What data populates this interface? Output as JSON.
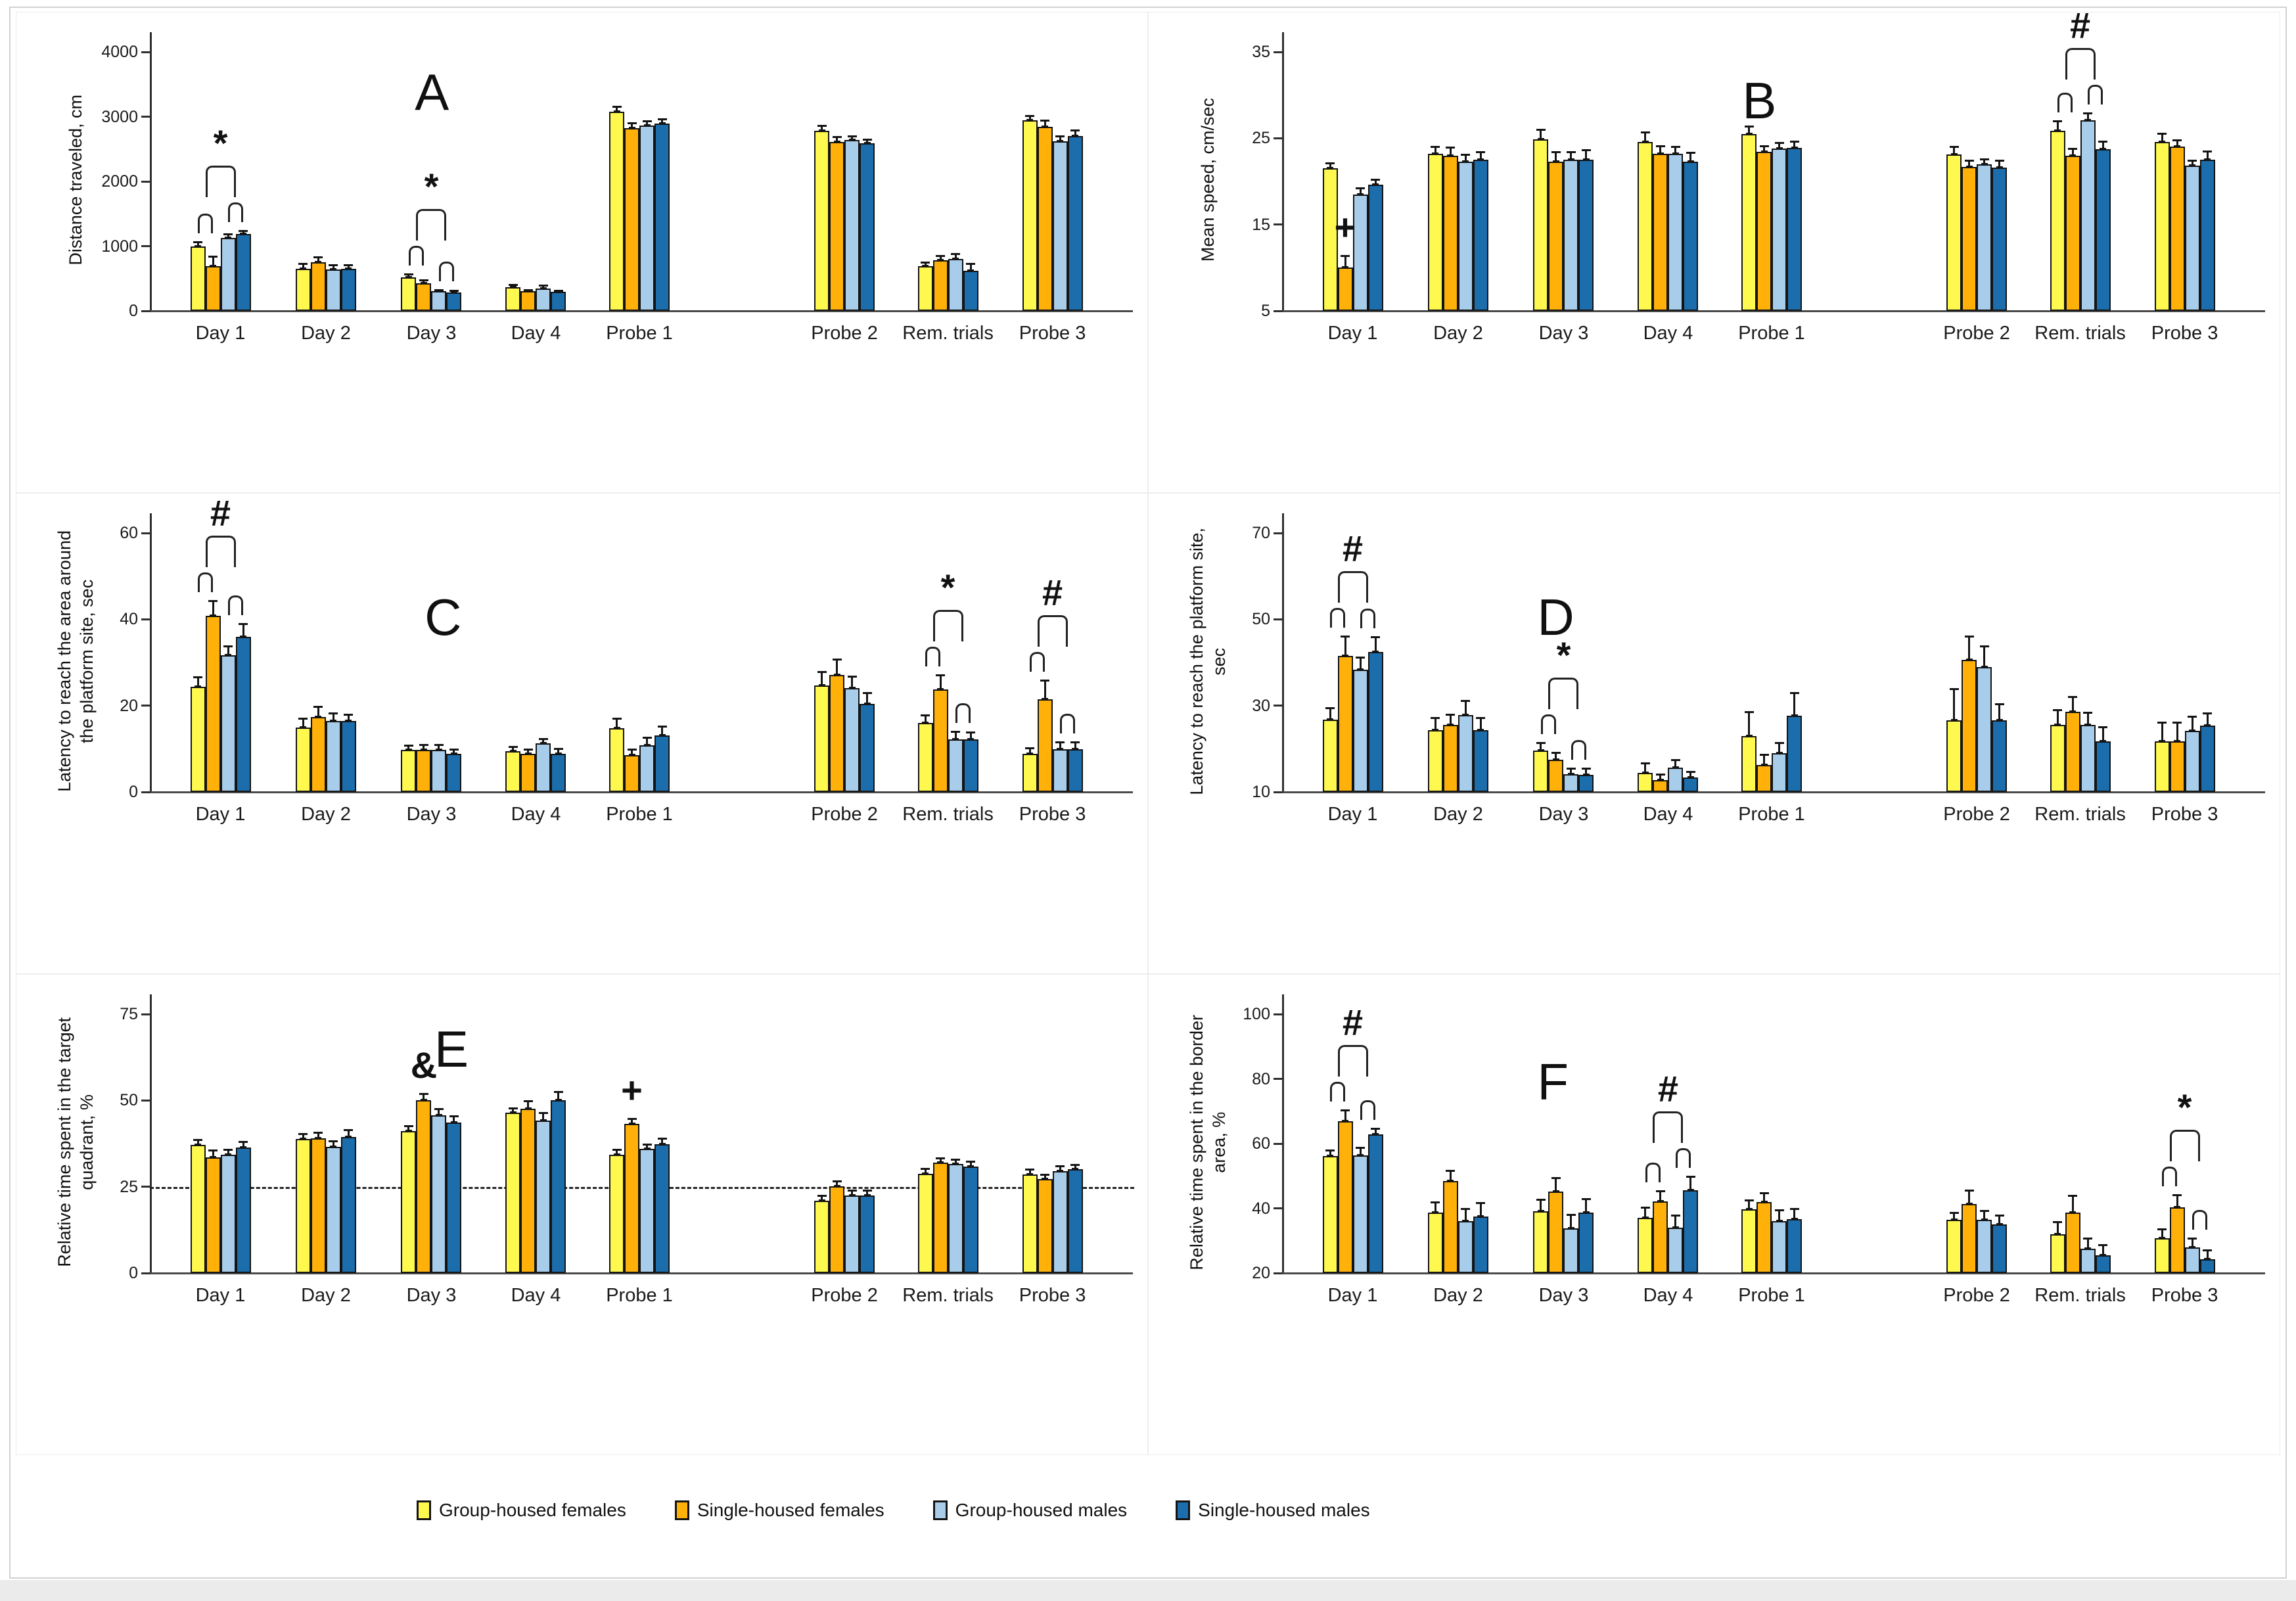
{
  "figure": {
    "description": "Six-panel Morris water maze bar figure with error bars",
    "categories": [
      "Day 1",
      "Day 2",
      "Day 3",
      "Day 4",
      "Probe 1",
      "Probe 2",
      "Rem. trials",
      "Probe 3"
    ],
    "legend": [
      {
        "label": "Group-housed females",
        "color": "#FEF84F"
      },
      {
        "label": "Single-housed females",
        "color": "#FFB10A"
      },
      {
        "label": "Group-housed males",
        "color": "#A8CDEB"
      },
      {
        "label": "Single-housed males",
        "color": "#1C6DAB"
      }
    ],
    "significance_symbols": [
      "*",
      "#",
      "+",
      "&"
    ]
  },
  "chart_data": [
    {
      "type": "bar",
      "panel": "A",
      "ylabel": "Distance traveled, cm",
      "ymin": 0,
      "ymax": 4000,
      "yticks": [
        0,
        1000,
        2000,
        3000,
        4000
      ],
      "categories": [
        "Day 1",
        "Day 2",
        "Day 3",
        "Day 4",
        "Probe 1",
        "Probe 2",
        "Rem. trials",
        "Probe 3"
      ],
      "series": [
        {
          "name": "Group-housed females",
          "values": [
            1000,
            650,
            520,
            370,
            3080,
            2780,
            690,
            2940
          ],
          "errors": [
            80,
            90,
            60,
            50,
            90,
            90,
            70,
            90
          ]
        },
        {
          "name": "Single-housed females",
          "values": [
            690,
            750,
            430,
            300,
            2820,
            2610,
            780,
            2840
          ],
          "errors": [
            160,
            90,
            60,
            40,
            90,
            90,
            80,
            110
          ]
        },
        {
          "name": "Group-housed males",
          "values": [
            1130,
            640,
            300,
            350,
            2860,
            2640,
            800,
            2620
          ],
          "errors": [
            70,
            80,
            40,
            60,
            80,
            70,
            90,
            90
          ]
        },
        {
          "name": "Single-housed males",
          "values": [
            1190,
            650,
            280,
            290,
            2890,
            2590,
            620,
            2700
          ],
          "errors": [
            60,
            70,
            40,
            40,
            80,
            70,
            120,
            100
          ]
        }
      ],
      "annotations": [
        {
          "symbol": "*",
          "category": "Day 1",
          "type": "bracket"
        },
        {
          "symbol": "*",
          "category": "Day 3",
          "type": "bracket"
        }
      ]
    },
    {
      "type": "bar",
      "panel": "B",
      "ylabel": "Mean speed, cm/sec",
      "ymin": 5,
      "ymax": 35,
      "yticks": [
        5,
        15,
        25,
        35
      ],
      "categories": [
        "Day 1",
        "Day 2",
        "Day 3",
        "Day 4",
        "Probe 1",
        "Probe 2",
        "Rem. trials",
        "Probe 3"
      ],
      "series": [
        {
          "name": "Group-housed females",
          "values": [
            21.5,
            23.2,
            24.9,
            24.6,
            25.5,
            23.1,
            25.9,
            24.6
          ],
          "errors": [
            0.7,
            0.9,
            1.2,
            1.2,
            1.0,
            1.0,
            1.2,
            1.0
          ]
        },
        {
          "name": "Single-housed females",
          "values": [
            10.0,
            23.0,
            22.3,
            23.2,
            23.4,
            21.7,
            23.0,
            24.0
          ],
          "errors": [
            1.5,
            1.0,
            1.2,
            1.0,
            0.8,
            0.8,
            0.9,
            0.9
          ]
        },
        {
          "name": "Group-housed males",
          "values": [
            18.5,
            22.3,
            22.5,
            23.2,
            23.8,
            22.0,
            27.1,
            21.8
          ],
          "errors": [
            0.8,
            0.9,
            1.0,
            0.9,
            0.8,
            0.7,
            0.9,
            0.7
          ]
        },
        {
          "name": "Single-housed males",
          "values": [
            19.6,
            22.5,
            22.5,
            22.3,
            23.9,
            21.6,
            23.7,
            22.5
          ],
          "errors": [
            0.7,
            1.0,
            1.2,
            1.1,
            0.8,
            0.9,
            1.0,
            1.1
          ]
        }
      ],
      "annotations": [
        {
          "symbol": "+",
          "category": "Day 1",
          "type": "single",
          "series": "Single-housed females"
        },
        {
          "symbol": "#",
          "category": "Rem. trials",
          "type": "bracket"
        }
      ]
    },
    {
      "type": "bar",
      "panel": "C",
      "ylabel": "Latency to reach the area around\nthe platform site, sec",
      "ymin": 0,
      "ymax": 60,
      "yticks": [
        0,
        20,
        40,
        60
      ],
      "categories": [
        "Day 1",
        "Day 2",
        "Day 3",
        "Day 4",
        "Probe 1",
        "Probe 2",
        "Rem. trials",
        "Probe 3"
      ],
      "series": [
        {
          "name": "Group-housed females",
          "values": [
            24.3,
            15.0,
            9.8,
            9.5,
            14.7,
            24.6,
            16.0,
            8.8
          ],
          "errors": [
            2.5,
            2.2,
            1.2,
            1.2,
            2.5,
            3.5,
            2.0,
            1.5
          ]
        },
        {
          "name": "Single-housed females",
          "values": [
            40.8,
            17.4,
            9.8,
            8.9,
            8.5,
            27.1,
            23.7,
            21.4
          ],
          "errors": [
            3.6,
            2.5,
            1.3,
            1.2,
            1.5,
            3.8,
            3.6,
            4.6
          ]
        },
        {
          "name": "Group-housed males",
          "values": [
            31.7,
            16.4,
            9.8,
            11.2,
            10.8,
            24.0,
            12.2,
            9.9
          ],
          "errors": [
            2.3,
            2.0,
            1.3,
            1.3,
            2.0,
            3.0,
            2.0,
            1.8
          ]
        },
        {
          "name": "Single-housed males",
          "values": [
            36.0,
            16.4,
            8.9,
            8.9,
            13.1,
            20.4,
            12.2,
            9.9
          ],
          "errors": [
            3.2,
            1.8,
            1.2,
            1.3,
            2.3,
            2.8,
            1.8,
            1.8
          ]
        }
      ],
      "annotations": [
        {
          "symbol": "#",
          "category": "Day 1",
          "type": "bracket"
        },
        {
          "symbol": "*",
          "category": "Rem. trials",
          "type": "bracket"
        },
        {
          "symbol": "#",
          "category": "Probe 3",
          "type": "bracket"
        }
      ]
    },
    {
      "type": "bar",
      "panel": "D",
      "ylabel": "Latency to reach the platform site,\nsec",
      "ymin": 10,
      "ymax": 70,
      "yticks": [
        10,
        30,
        50,
        70
      ],
      "categories": [
        "Day 1",
        "Day 2",
        "Day 3",
        "Day 4",
        "Probe 1",
        "Probe 2",
        "Rem. trials",
        "Probe 3"
      ],
      "series": [
        {
          "name": "Group-housed females",
          "values": [
            26.8,
            24.3,
            19.6,
            14.4,
            23.0,
            26.6,
            25.6,
            21.7
          ],
          "errors": [
            2.8,
            3.0,
            2.0,
            2.5,
            5.8,
            7.5,
            3.6,
            4.6
          ]
        },
        {
          "name": "Single-housed females",
          "values": [
            41.6,
            25.6,
            17.5,
            12.7,
            16.3,
            40.6,
            28.6,
            21.7
          ],
          "errors": [
            4.6,
            2.6,
            1.8,
            1.5,
            2.6,
            5.6,
            3.6,
            4.6
          ]
        },
        {
          "name": "Group-housed males",
          "values": [
            38.4,
            27.8,
            14.1,
            15.6,
            19.0,
            38.9,
            25.6,
            24.1
          ],
          "errors": [
            3.0,
            3.6,
            1.6,
            2.0,
            2.6,
            5.0,
            3.0,
            3.6
          ]
        },
        {
          "name": "Single-housed males",
          "values": [
            42.5,
            24.3,
            14.0,
            13.3,
            27.6,
            26.6,
            21.7,
            25.4
          ],
          "errors": [
            3.6,
            3.0,
            1.6,
            1.6,
            5.6,
            4.0,
            3.6,
            3.0
          ]
        }
      ],
      "annotations": [
        {
          "symbol": "#",
          "category": "Day 1",
          "type": "bracket"
        },
        {
          "symbol": "*",
          "category": "Day 3",
          "type": "bracket"
        }
      ]
    },
    {
      "type": "bar",
      "panel": "E",
      "ylabel": "Relative time spent in the target\nquadrant, %",
      "ymin": 0,
      "ymax": 75,
      "yticks": [
        0,
        25,
        50,
        75
      ],
      "reference_line": 25,
      "reference_line_style": "dashed",
      "categories": [
        "Day 1",
        "Day 2",
        "Day 3",
        "Day 4",
        "Probe 1",
        "Probe 2",
        "Rem. trials",
        "Probe 3"
      ],
      "series": [
        {
          "name": "Group-housed females",
          "values": [
            37.1,
            38.8,
            41.1,
            46.4,
            34.2,
            21.0,
            28.8,
            28.6
          ],
          "errors": [
            1.8,
            1.8,
            1.8,
            1.5,
            1.8,
            1.6,
            1.6,
            1.6
          ]
        },
        {
          "name": "Single-housed females",
          "values": [
            33.5,
            39.0,
            50.0,
            47.6,
            43.2,
            25.1,
            31.9,
            27.2
          ],
          "errors": [
            2.2,
            2.0,
            2.2,
            2.5,
            1.8,
            1.8,
            1.6,
            1.6
          ]
        },
        {
          "name": "Group-housed males",
          "values": [
            34.2,
            36.6,
            45.7,
            44.2,
            35.9,
            22.5,
            31.6,
            29.6
          ],
          "errors": [
            1.8,
            1.8,
            2.0,
            2.5,
            1.6,
            1.6,
            1.6,
            1.6
          ]
        },
        {
          "name": "Single-housed males",
          "values": [
            36.3,
            39.4,
            43.6,
            50.1,
            37.4,
            22.5,
            30.8,
            30.0
          ],
          "errors": [
            2.0,
            2.2,
            2.0,
            2.6,
            1.8,
            1.6,
            1.8,
            1.6
          ]
        }
      ],
      "annotations": [
        {
          "symbol": "&",
          "category": "Day 3",
          "type": "single",
          "series": "Single-housed females"
        },
        {
          "symbol": "+",
          "category": "Probe 1",
          "type": "single",
          "series": "Single-housed females"
        }
      ]
    },
    {
      "type": "bar",
      "panel": "F",
      "ylabel": "Relative time spent in the border\narea, %",
      "ymin": 20,
      "ymax": 100,
      "yticks": [
        20,
        40,
        60,
        80,
        100
      ],
      "categories": [
        "Day 1",
        "Day 2",
        "Day 3",
        "Day 4",
        "Probe 1",
        "Probe 2",
        "Rem. trials",
        "Probe 3"
      ],
      "series": [
        {
          "name": "Group-housed females",
          "values": [
            56.1,
            38.6,
            39.0,
            37.0,
            39.8,
            36.4,
            32.0,
            30.8
          ],
          "errors": [
            2.0,
            3.5,
            4.0,
            3.5,
            3.0,
            2.5,
            4.0,
            3.0
          ]
        },
        {
          "name": "Single-housed females",
          "values": [
            67.0,
            48.4,
            45.1,
            42.1,
            42.0,
            41.3,
            38.6,
            40.3
          ],
          "errors": [
            3.5,
            3.5,
            4.5,
            3.5,
            3.0,
            4.5,
            5.5,
            4.0
          ]
        },
        {
          "name": "Group-housed males",
          "values": [
            56.4,
            36.1,
            33.8,
            34.0,
            36.1,
            36.4,
            27.5,
            27.9
          ],
          "errors": [
            2.5,
            4.0,
            4.5,
            4.0,
            3.5,
            3.0,
            3.5,
            3.0
          ]
        },
        {
          "name": "Single-housed males",
          "values": [
            62.9,
            37.5,
            38.6,
            45.6,
            36.7,
            35.1,
            25.4,
            24.3
          ],
          "errors": [
            2.0,
            4.5,
            4.5,
            4.5,
            3.5,
            3.0,
            3.5,
            3.0
          ]
        }
      ],
      "annotations": [
        {
          "symbol": "#",
          "category": "Day 1",
          "type": "bracket"
        },
        {
          "symbol": "#",
          "category": "Day 4",
          "type": "bracket"
        },
        {
          "symbol": "*",
          "category": "Probe 3",
          "type": "bracket"
        }
      ]
    }
  ]
}
